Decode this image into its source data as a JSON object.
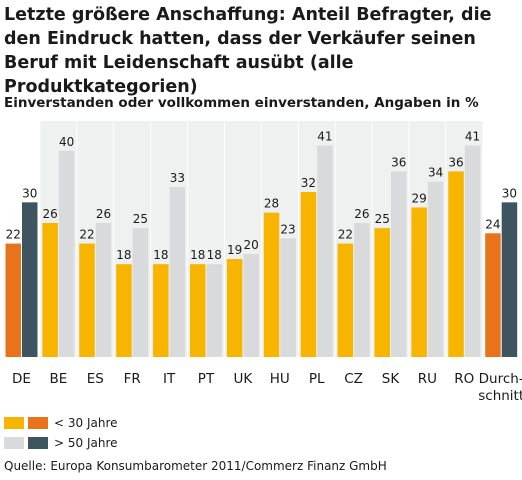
{
  "title": "Letzte größere Anschaffung: Anteil Befragter, die den Eindruck hatten, dass der Verkäufer seinen Beruf mit Leidenschaft ausübt (alle Produktkategorien)",
  "subtitle": "Einverstanden oder vollkommen einverstanden, Angaben in %",
  "source": "Quelle: Europa Konsumbarometer 2011/Commerz Finanz GmbH",
  "legend": {
    "under30": "< 30 Jahre",
    "over50": "> 50 Jahre"
  },
  "colors": {
    "yellow": "#f7b500",
    "orange": "#e8731a",
    "lightgray": "#d8dadb",
    "darkgray": "#3e5560",
    "panel": "#eff0f0"
  },
  "chart_data": {
    "type": "bar",
    "title": "Letzte größere Anschaffung: Anteil Befragter, die den Eindruck hatten, dass der Verkäufer seinen Beruf mit Leidenschaft ausübt (alle Produktkategorien)",
    "subtitle": "Einverstanden oder vollkommen einverstanden, Angaben in %",
    "categories": [
      "DE",
      "BE",
      "ES",
      "FR",
      "IT",
      "PT",
      "UK",
      "HU",
      "PL",
      "CZ",
      "SK",
      "RU",
      "RO",
      "Durch-\nschnitt"
    ],
    "highlight": [
      "DE",
      "Durch-\nschnitt"
    ],
    "series": [
      {
        "name": "< 30 Jahre",
        "values": [
          22,
          26,
          22,
          18,
          18,
          18,
          19,
          28,
          32,
          22,
          25,
          29,
          36,
          24
        ]
      },
      {
        "name": "> 50 Jahre",
        "values": [
          30,
          40,
          26,
          25,
          33,
          18,
          20,
          23,
          41,
          26,
          36,
          34,
          41,
          30
        ]
      }
    ],
    "ylim": [
      0,
      45
    ],
    "grid": false,
    "legend_position": "bottom-left"
  }
}
